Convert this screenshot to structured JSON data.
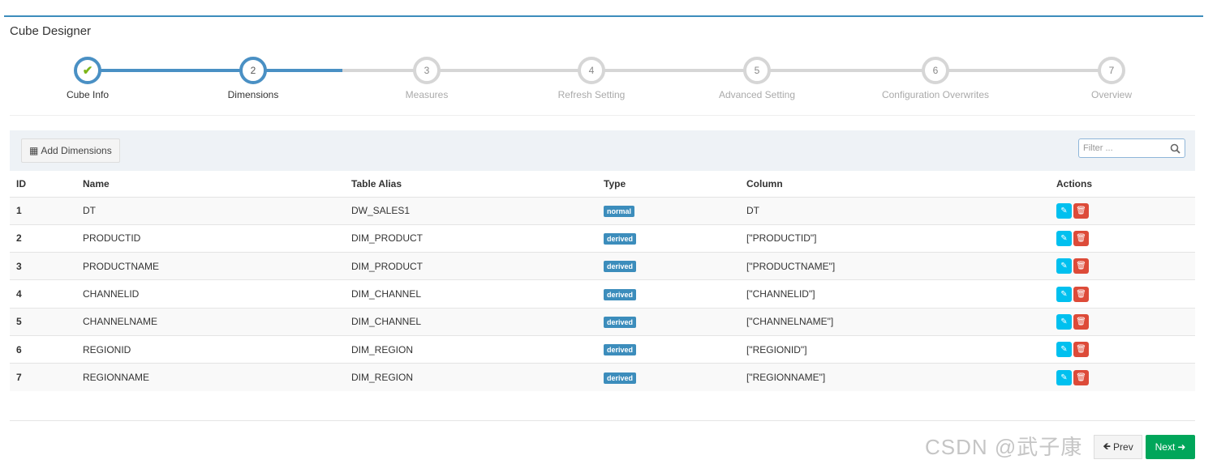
{
  "header": {
    "title": "Cube Designer"
  },
  "steps": [
    {
      "num": "1",
      "label": "Cube Info",
      "state": "done"
    },
    {
      "num": "2",
      "label": "Dimensions",
      "state": "active"
    },
    {
      "num": "3",
      "label": "Measures",
      "state": "pending"
    },
    {
      "num": "4",
      "label": "Refresh Setting",
      "state": "pending"
    },
    {
      "num": "5",
      "label": "Advanced Setting",
      "state": "pending"
    },
    {
      "num": "6",
      "label": "Configuration Overwrites",
      "state": "pending"
    },
    {
      "num": "7",
      "label": "Overview",
      "state": "pending"
    }
  ],
  "toolbar": {
    "add_label": "Add Dimensions",
    "filter_placeholder": "Filter ..."
  },
  "table": {
    "headers": [
      "ID",
      "Name",
      "Table Alias",
      "Type",
      "Column",
      "Actions"
    ],
    "rows": [
      [
        "1",
        "DT",
        "DW_SALES1",
        "normal",
        "DT"
      ],
      [
        "2",
        "PRODUCTID",
        "DIM_PRODUCT",
        "derived",
        "[\"PRODUCTID\"]"
      ],
      [
        "3",
        "PRODUCTNAME",
        "DIM_PRODUCT",
        "derived",
        "[\"PRODUCTNAME\"]"
      ],
      [
        "4",
        "CHANNELID",
        "DIM_CHANNEL",
        "derived",
        "[\"CHANNELID\"]"
      ],
      [
        "5",
        "CHANNELNAME",
        "DIM_CHANNEL",
        "derived",
        "[\"CHANNELNAME\"]"
      ],
      [
        "6",
        "REGIONID",
        "DIM_REGION",
        "derived",
        "[\"REGIONID\"]"
      ],
      [
        "7",
        "REGIONNAME",
        "DIM_REGION",
        "derived",
        "[\"REGIONNAME\"]"
      ]
    ]
  },
  "footer": {
    "prev_label": "Prev",
    "next_label": "Next"
  },
  "watermark": "CSDN @武子康",
  "colors": {
    "accent": "#3c8dbc",
    "step_done": "#4a90c4",
    "check": "#7cb518",
    "edit": "#00c0ef",
    "delete": "#dd4b39",
    "next": "#00a65a"
  }
}
